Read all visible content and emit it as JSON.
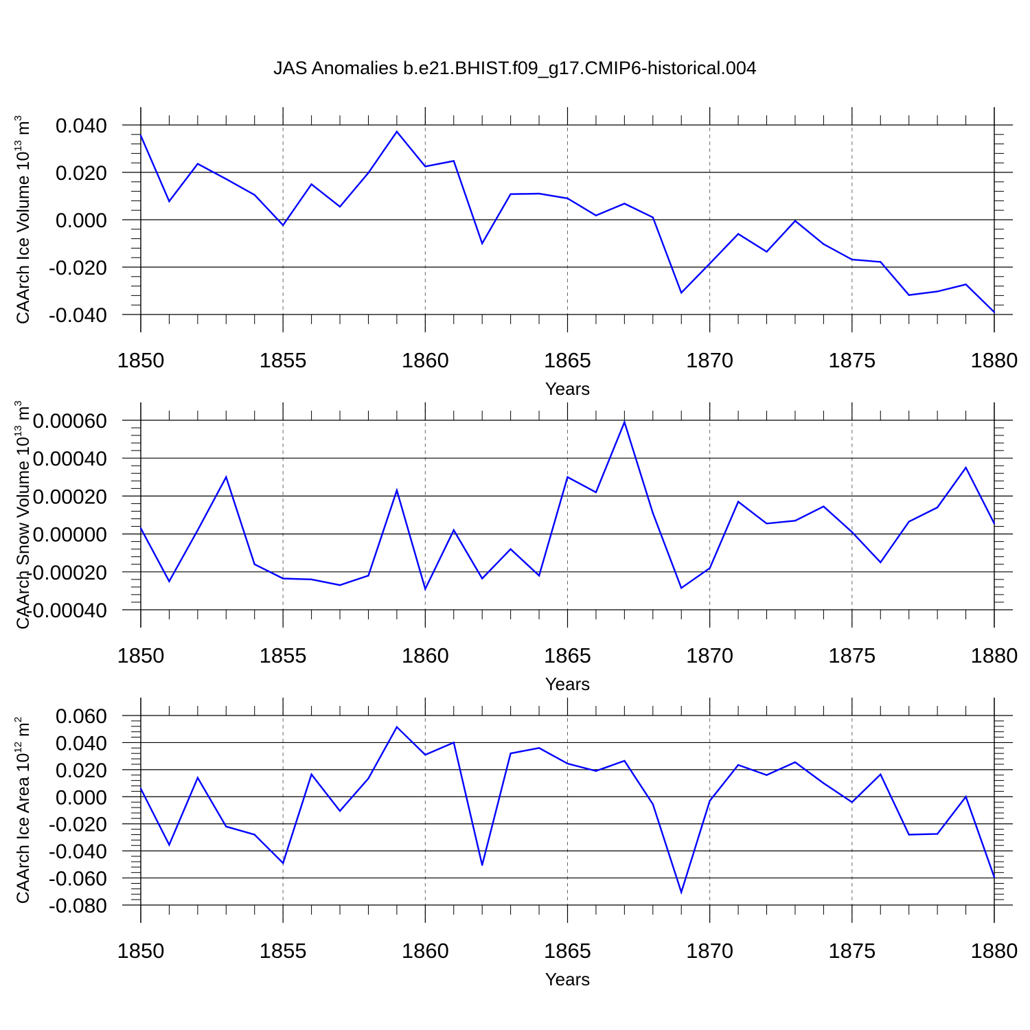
{
  "title": "JAS Anomalies b.e21.BHIST.f09_g17.CMIP6-historical.004",
  "colors": {
    "line": "#0000ff",
    "axis": "#000000",
    "grid": "#666666"
  },
  "chart_data": [
    {
      "type": "line",
      "ylabel": "CAArch Ice Volume 10",
      "ylabel_exp": "13",
      "ylabel_unit": " m",
      "ylabel_unit_exp": "3",
      "xlabel": "Years",
      "xlim": [
        1850,
        1880
      ],
      "ylim": [
        -0.04,
        0.04
      ],
      "xticks": [
        "1850",
        "1855",
        "1860",
        "1865",
        "1870",
        "1875",
        "1880"
      ],
      "yticks": [
        "0.040",
        "0.020",
        "0.000",
        "-0.020",
        "-0.040"
      ],
      "grid_x": [
        1855,
        1860,
        1865,
        1870,
        1875
      ],
      "x": [
        1850,
        1851,
        1852,
        1853,
        1854,
        1855,
        1856,
        1857,
        1858,
        1859,
        1860,
        1861,
        1862,
        1863,
        1864,
        1865,
        1866,
        1867,
        1868,
        1869,
        1870,
        1871,
        1872,
        1873,
        1874,
        1875,
        1876,
        1877,
        1878,
        1879,
        1880
      ],
      "values": [
        0.0355,
        0.0078,
        0.0236,
        0.0172,
        0.0105,
        -0.0023,
        0.015,
        0.0055,
        0.0198,
        0.0372,
        0.0225,
        0.0248,
        -0.01,
        0.0108,
        0.011,
        0.009,
        0.0018,
        0.0068,
        0.001,
        -0.0308,
        -0.0185,
        -0.006,
        -0.0135,
        -0.0005,
        -0.0103,
        -0.0168,
        -0.0178,
        -0.0318,
        -0.0303,
        -0.0273,
        -0.039
      ]
    },
    {
      "type": "line",
      "ylabel": "CAArch Snow Volume 10",
      "ylabel_exp": "13",
      "ylabel_unit": " m",
      "ylabel_unit_exp": "3",
      "xlabel": "Years",
      "xlim": [
        1850,
        1880
      ],
      "ylim": [
        -0.0004,
        0.0006
      ],
      "xticks": [
        "1850",
        "1855",
        "1860",
        "1865",
        "1870",
        "1875",
        "1880"
      ],
      "yticks": [
        "0.00060",
        "0.00040",
        "0.00020",
        "0.00000",
        "-0.00020",
        "-0.00040"
      ],
      "grid_x": [
        1855,
        1860,
        1865,
        1870,
        1875
      ],
      "x": [
        1850,
        1851,
        1852,
        1853,
        1854,
        1855,
        1856,
        1857,
        1858,
        1859,
        1860,
        1861,
        1862,
        1863,
        1864,
        1865,
        1866,
        1867,
        1868,
        1869,
        1870,
        1871,
        1872,
        1873,
        1874,
        1875,
        1876,
        1877,
        1878,
        1879,
        1880
      ],
      "values": [
        3e-05,
        -0.00025,
        2e-05,
        0.0003,
        -0.00016,
        -0.000235,
        -0.00024,
        -0.00027,
        -0.00022,
        0.00023,
        -0.00029,
        2e-05,
        -0.000235,
        -8e-05,
        -0.00022,
        0.0003,
        0.00022,
        0.00059,
        0.00011,
        -0.000285,
        -0.00018,
        0.00017,
        5.5e-05,
        7e-05,
        0.000145,
        1e-05,
        -0.00015,
        6.5e-05,
        0.00014,
        0.00035,
        5.5e-05
      ]
    },
    {
      "type": "line",
      "ylabel": "CAArch Ice Area 10",
      "ylabel_exp": "12",
      "ylabel_unit": " m",
      "ylabel_unit_exp": "2",
      "xlabel": "Years",
      "xlim": [
        1850,
        1880
      ],
      "ylim": [
        -0.08,
        0.06
      ],
      "xticks": [
        "1850",
        "1855",
        "1860",
        "1865",
        "1870",
        "1875",
        "1880"
      ],
      "yticks": [
        "0.060",
        "0.040",
        "0.020",
        "0.000",
        "-0.020",
        "-0.040",
        "-0.060",
        "-0.080"
      ],
      "grid_x": [
        1855,
        1860,
        1865,
        1870,
        1875
      ],
      "x": [
        1850,
        1851,
        1852,
        1853,
        1854,
        1855,
        1856,
        1857,
        1858,
        1859,
        1860,
        1861,
        1862,
        1863,
        1864,
        1865,
        1866,
        1867,
        1868,
        1869,
        1870,
        1871,
        1872,
        1873,
        1874,
        1875,
        1876,
        1877,
        1878,
        1879,
        1880
      ],
      "values": [
        0.006,
        -0.0355,
        0.014,
        -0.022,
        -0.028,
        -0.049,
        0.0165,
        -0.0105,
        0.0135,
        0.0515,
        0.031,
        0.04,
        -0.0505,
        0.032,
        0.036,
        0.0245,
        0.019,
        0.0265,
        -0.0055,
        -0.0705,
        -0.003,
        0.0235,
        0.016,
        0.0255,
        0.01,
        -0.004,
        0.0165,
        -0.028,
        -0.0275,
        0.0,
        -0.0595
      ]
    }
  ]
}
